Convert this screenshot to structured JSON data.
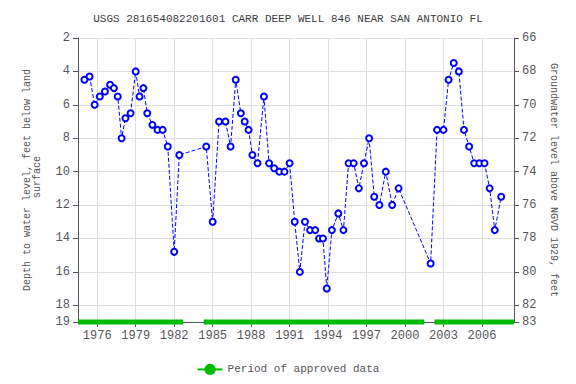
{
  "chart_data": {
    "type": "line",
    "title": "USGS 281654082201601 CARR DEEP WELL 846 NEAR SAN ANTONIO FL",
    "ylabel": "Depth to water level, feet below land\n surface",
    "y2label": "Groundwater level above NGVD 1929, feet",
    "xlim": [
      1974.5,
      2008.5
    ],
    "xticks": [
      1976,
      1979,
      1982,
      1985,
      1988,
      1991,
      1994,
      1997,
      2000,
      2003,
      2006
    ],
    "ylim": [
      2,
      19
    ],
    "yticks": [
      2,
      4,
      6,
      8,
      10,
      12,
      14,
      16,
      18
    ],
    "y2lim": [
      66,
      83
    ],
    "y2ticks": [
      66,
      68,
      70,
      72,
      74,
      76,
      78,
      80,
      82
    ],
    "inverted": true,
    "grid": true,
    "legend": "bottom",
    "x": [
      1975.0,
      1975.4,
      1975.8,
      1976.2,
      1976.6,
      1977.0,
      1977.3,
      1977.6,
      1977.9,
      1978.2,
      1978.6,
      1979.0,
      1979.3,
      1979.6,
      1979.9,
      1980.3,
      1980.7,
      1981.1,
      1981.5,
      1982.0,
      1982.4,
      1984.5,
      1985.0,
      1985.5,
      1986.0,
      1986.4,
      1986.8,
      1987.2,
      1987.5,
      1987.8,
      1988.1,
      1988.5,
      1989.0,
      1989.4,
      1989.8,
      1990.2,
      1990.6,
      1991.0,
      1991.4,
      1991.8,
      1992.2,
      1992.6,
      1993.0,
      1993.3,
      1993.6,
      1993.9,
      1994.3,
      1994.8,
      1995.2,
      1995.6,
      1996.0,
      1996.4,
      1996.8,
      1997.2,
      1997.6,
      1998.0,
      1998.5,
      1999.0,
      1999.5,
      2002.0,
      2002.5,
      2003.0,
      2003.4,
      2003.8,
      2004.2,
      2004.6,
      2005.0,
      2005.4,
      2005.8,
      2006.2,
      2006.6,
      2007.0,
      2007.5
    ],
    "series": [
      {
        "color": "#0000FF",
        "line_style": "dashed",
        "marker": "open circle",
        "values": [
          4.5,
          4.3,
          6.0,
          5.5,
          5.2,
          4.8,
          5.0,
          5.5,
          8.0,
          6.8,
          6.5,
          4.0,
          5.5,
          5.0,
          6.5,
          7.2,
          7.5,
          7.5,
          8.5,
          14.8,
          9.0,
          8.5,
          13.0,
          7.0,
          7.0,
          8.5,
          4.5,
          6.5,
          7.0,
          7.5,
          9.0,
          9.5,
          5.5,
          9.5,
          9.8,
          10.0,
          10.0,
          9.5,
          13.0,
          16.0,
          13.0,
          13.5,
          13.5,
          14.0,
          14.0,
          17.0,
          13.5,
          12.5,
          13.5,
          9.5,
          9.5,
          11.0,
          9.5,
          8.0,
          11.5,
          12.0,
          10.0,
          12.0,
          11.0,
          15.5,
          7.5,
          7.5,
          4.5,
          3.5,
          4.0,
          7.5,
          8.5,
          9.5,
          9.5,
          9.5,
          11.0,
          13.5,
          11.5
        ]
      }
    ],
    "approved_periods": {
      "name": "Period of approved data",
      "color": "#00BB00",
      "segments": [
        [
          1974.5,
          1982.7
        ],
        [
          1984.3,
          2001.5
        ],
        [
          2002.3,
          2008.5
        ]
      ]
    }
  }
}
